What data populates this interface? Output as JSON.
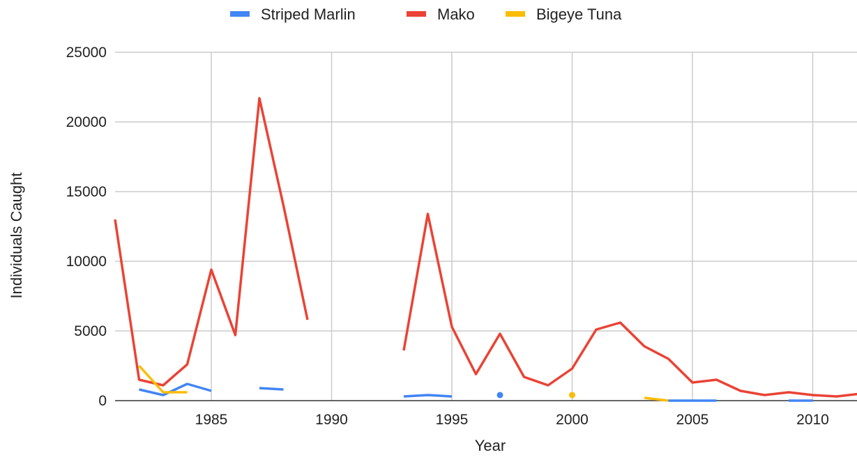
{
  "chart_data": {
    "type": "line",
    "xlabel": "Year",
    "ylabel": "Individuals Caught",
    "xlim": [
      1981,
      2012
    ],
    "ylim": [
      0,
      25000
    ],
    "x_ticks": [
      1985,
      1990,
      1995,
      2000,
      2005,
      2010
    ],
    "y_ticks": [
      0,
      5000,
      10000,
      15000,
      20000,
      25000
    ],
    "grid": true,
    "legend_position": "top",
    "x": [
      1981,
      1982,
      1983,
      1984,
      1985,
      1986,
      1987,
      1988,
      1989,
      1990,
      1991,
      1992,
      1993,
      1994,
      1995,
      1996,
      1997,
      1998,
      1999,
      2000,
      2001,
      2002,
      2003,
      2004,
      2005,
      2006,
      2007,
      2008,
      2009,
      2010,
      2011,
      2012
    ],
    "series": [
      {
        "name": "Striped Marlin",
        "color": "#4285f4",
        "values": [
          null,
          800,
          400,
          1200,
          700,
          null,
          900,
          800,
          null,
          null,
          null,
          null,
          300,
          400,
          300,
          null,
          400,
          null,
          null,
          null,
          null,
          null,
          null,
          0,
          0,
          0,
          null,
          null,
          0,
          0,
          null,
          null
        ]
      },
      {
        "name": "Mako",
        "color": "#ea4335",
        "values": [
          13000,
          1500,
          1100,
          2600,
          9400,
          4700,
          21700,
          14000,
          5800,
          null,
          null,
          null,
          3600,
          13400,
          5300,
          1900,
          4800,
          1700,
          1100,
          2300,
          5100,
          5600,
          3900,
          3000,
          1300,
          1500,
          700,
          400,
          600,
          400,
          300,
          500
        ]
      },
      {
        "name": "Bigeye Tuna",
        "color": "#fbbc04",
        "values": [
          null,
          2500,
          600,
          600,
          null,
          null,
          null,
          null,
          null,
          null,
          null,
          null,
          null,
          null,
          null,
          null,
          null,
          null,
          null,
          400,
          null,
          null,
          200,
          0,
          null,
          null,
          null,
          null,
          null,
          null,
          null,
          null
        ]
      }
    ]
  }
}
